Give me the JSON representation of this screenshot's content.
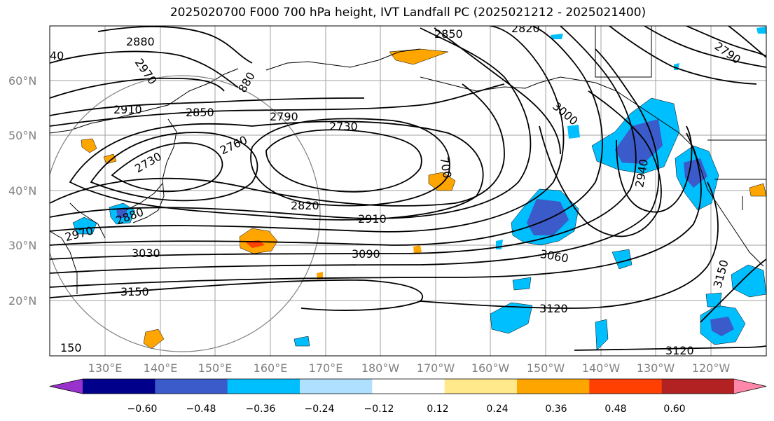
{
  "title": "2025020700 F000 700 hPa height, IVT Landfall PC (2025021212 - 2025021400)",
  "lat_labels": [
    "60°N",
    "50°N",
    "40°N",
    "30°N",
    "20°N"
  ],
  "lon_labels": [
    "130°E",
    "140°E",
    "150°E",
    "160°E",
    "170°E",
    "180°W",
    "170°W",
    "160°W",
    "150°W",
    "140°W",
    "130°W",
    "120°W"
  ],
  "contour_labels": [
    "2880",
    "2850",
    "2820",
    "2790",
    "40",
    "2970",
    "880",
    "2910",
    "2850",
    "2790",
    "2730",
    "2760",
    "2730",
    "3000",
    "700",
    "2940",
    "2820",
    "2910",
    "2880",
    "2970",
    "3030",
    "3090",
    "3060",
    "3150",
    "3120",
    "3150",
    "150",
    "3120"
  ],
  "colorbar": {
    "colors": [
      "#9932cc",
      "#00008b",
      "#3a5bc9",
      "#00bfff",
      "#b0e0ff",
      "#ffffff",
      "#ffe98a",
      "#ffa500",
      "#ff4000",
      "#b22222",
      "#ff88aa"
    ],
    "tick_labels": [
      "−0.60",
      "−0.48",
      "−0.36",
      "−0.24",
      "−0.12",
      "0.12",
      "0.24",
      "0.36",
      "0.48",
      "0.60"
    ]
  },
  "legend_colors": {
    "positive": "#ffa500",
    "negative_strong": "#3a5bc9",
    "negative": "#00bfff",
    "contour": "#000000",
    "grid": "#a0a0a0"
  }
}
